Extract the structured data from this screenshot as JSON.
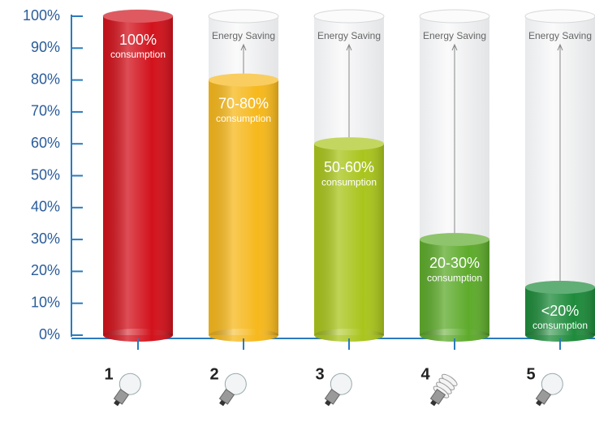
{
  "chart_data": {
    "type": "cylinder-bar",
    "categories": [
      "1",
      "2",
      "3",
      "4",
      "5"
    ],
    "values": [
      100,
      80,
      60,
      30,
      15
    ],
    "colors": [
      "#d2121c",
      "#f6b81c",
      "#a9c51c",
      "#5eab2c",
      "#1e8b3b"
    ],
    "bar_labels": [
      "100%",
      "70-80%",
      "50-60%",
      "20-30%",
      "<20%"
    ],
    "bar_sublabel": "consumption",
    "saving_label": "Energy Saving",
    "ylim": [
      0,
      100
    ],
    "yticks": [
      {
        "value": 0,
        "label": "0%"
      },
      {
        "value": 10,
        "label": "10%"
      },
      {
        "value": 20,
        "label": "20%"
      },
      {
        "value": 30,
        "label": "30%"
      },
      {
        "value": 40,
        "label": "40%"
      },
      {
        "value": 50,
        "label": "50%"
      },
      {
        "value": 60,
        "label": "60%"
      },
      {
        "value": 70,
        "label": "70%"
      },
      {
        "value": 80,
        "label": "80%"
      },
      {
        "value": 90,
        "label": "90%"
      },
      {
        "value": 100,
        "label": "100%"
      }
    ]
  }
}
